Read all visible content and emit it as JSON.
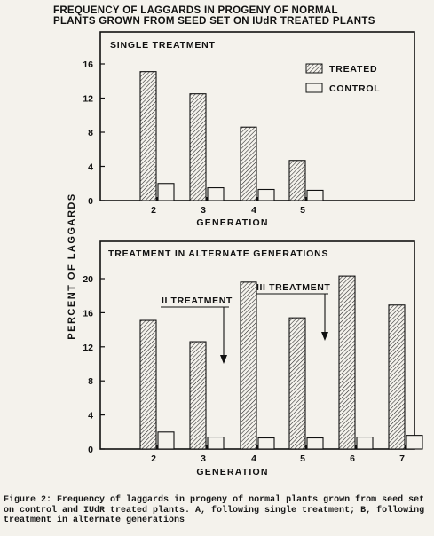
{
  "figure_title_line1": "FREQUENCY OF LAGGARDS IN PROGENY OF NORMAL",
  "figure_title_line2": "PLANTS GROWN FROM SEED SET ON IUdR TREATED PLANTS",
  "y_axis_label": "PERCENT OF LAGGARDS",
  "caption_label": "Figure 2:",
  "caption_text": "Frequency of laggards in progeny of normal plants grown from seed set on control and IUdR treated plants. A, following single treatment; B, following treatment in alternate generations",
  "colors": {
    "ink": "#111111",
    "background": "#f4f2ec"
  },
  "chart_data": [
    {
      "type": "bar",
      "title": "SINGLE TREATMENT",
      "xlabel": "GENERATION",
      "ylabel": "",
      "categories": [
        "2",
        "3",
        "4",
        "5"
      ],
      "ylim": [
        0,
        20
      ],
      "yticks": [
        0,
        4,
        8,
        12,
        16
      ],
      "legend_placement": "top-right",
      "series": [
        {
          "name": "TREATED",
          "pattern": "hatched",
          "values": [
            15.1,
            12.5,
            8.6,
            4.7
          ]
        },
        {
          "name": "CONTROL",
          "pattern": "open",
          "values": [
            2.0,
            1.5,
            1.3,
            1.2
          ]
        }
      ]
    },
    {
      "type": "bar",
      "title": "TREATMENT IN ALTERNATE GENERATIONS",
      "xlabel": "GENERATION",
      "ylabel": "",
      "categories": [
        "2",
        "3",
        "4",
        "5",
        "6",
        "7"
      ],
      "ylim": [
        0,
        22
      ],
      "yticks": [
        0,
        4,
        8,
        12,
        16,
        20
      ],
      "series": [
        {
          "name": "TREATED",
          "pattern": "hatched",
          "values": [
            15.1,
            12.6,
            19.6,
            15.4,
            20.3,
            16.9
          ]
        },
        {
          "name": "CONTROL",
          "pattern": "open",
          "values": [
            2.0,
            1.4,
            1.3,
            1.3,
            1.4,
            1.6
          ]
        }
      ],
      "annotations": [
        {
          "text": "II TREATMENT",
          "generation": "4"
        },
        {
          "text": "III TREATMENT",
          "generation": "6"
        }
      ]
    }
  ]
}
